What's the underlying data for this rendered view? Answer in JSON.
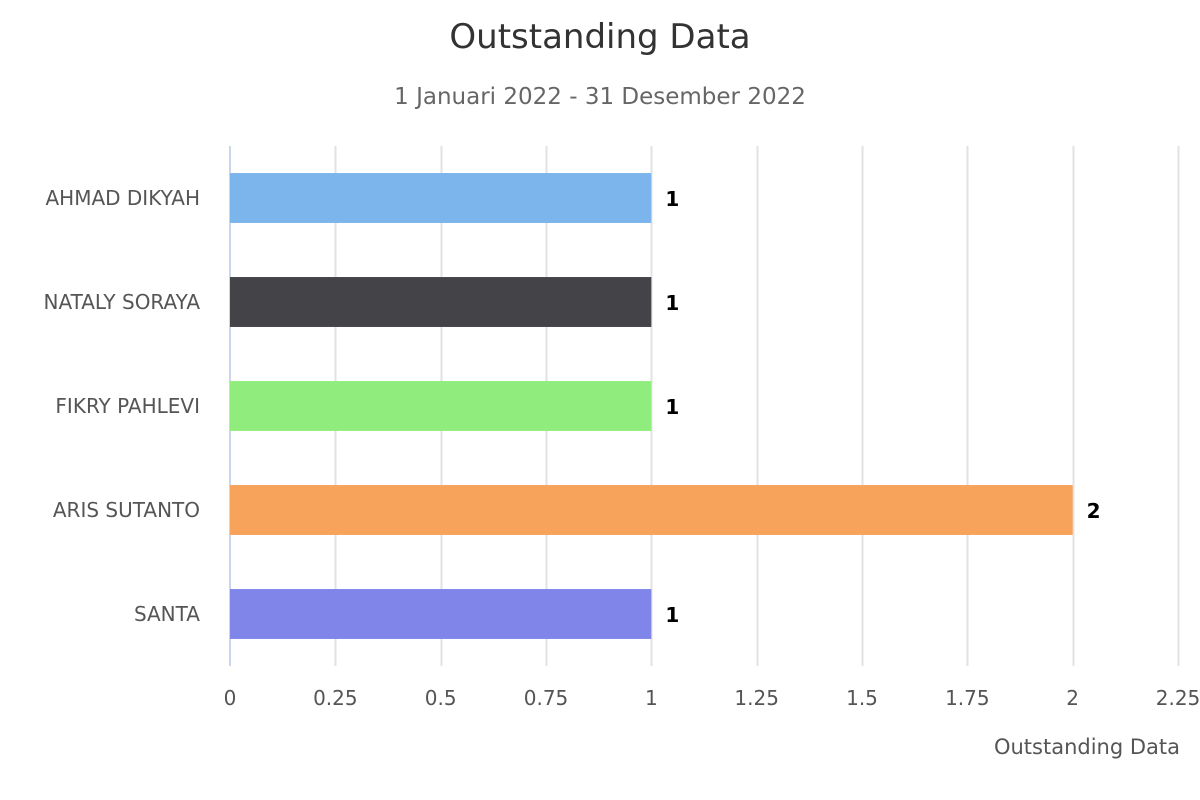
{
  "chart_data": {
    "type": "bar",
    "orientation": "horizontal",
    "title": "Outstanding Data",
    "subtitle": "1 Januari 2022 - 31 Desember 2022",
    "xlabel": "Outstanding Data",
    "ylabel": "",
    "categories": [
      "AHMAD DIKYAH",
      "NATALY SORAYA",
      "FIKRY PAHLEVI",
      "ARIS SUTANTO",
      "SANTA"
    ],
    "values": [
      1,
      1,
      1,
      2,
      1
    ],
    "data_labels": [
      "1",
      "1",
      "1",
      "2",
      "1"
    ],
    "colors": [
      "#7cb5ec",
      "#434348",
      "#90ed7d",
      "#f7a35c",
      "#8085e9"
    ],
    "xlim": [
      0,
      2.25
    ],
    "ticks": [
      "0",
      "0.25",
      "0.5",
      "0.75",
      "1",
      "1.25",
      "1.5",
      "1.75",
      "2",
      "2.25"
    ],
    "grid": true,
    "legend": "none"
  }
}
